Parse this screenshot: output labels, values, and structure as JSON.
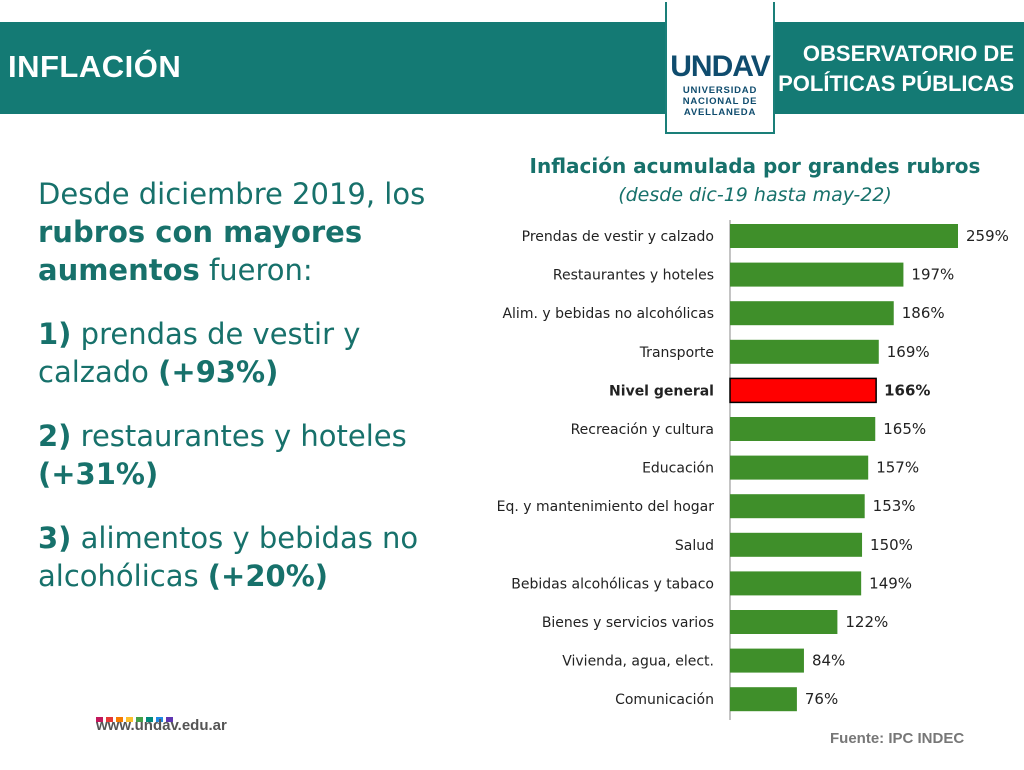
{
  "header": {
    "title": "INFLACIÓN",
    "right_line1": "OBSERVATORIO DE",
    "right_line2": "POLÍTICAS PÚBLICAS",
    "logo_mark": "UNDAV",
    "logo_line1": "UNIVERSIDAD",
    "logo_line2": "NACIONAL DE",
    "logo_line3": "AVELLANEDA"
  },
  "left_text": {
    "intro_1": "Desde diciembre 2019, los ",
    "intro_bold": "rubros con mayores aumentos",
    "intro_2": " fueron:",
    "item1_num": "1)",
    "item1_text": " prendas de vestir y calzado ",
    "item1_pct": "(+93%)",
    "item2_num": "2)",
    "item2_text": " restaurantes y hoteles ",
    "item2_pct": "(+31%)",
    "item3_num": "3)",
    "item3_text": " alimentos y bebidas no alcohólicas ",
    "item3_pct": "(+20%)"
  },
  "footer": {
    "url": "www.undav.edu.ar",
    "source": "Fuente: IPC INDEC",
    "dot_colors": [
      "#c2185b",
      "#e53935",
      "#f57c00",
      "#fbc02d",
      "#43a047",
      "#00897b",
      "#1e88e5",
      "#5e35b1"
    ]
  },
  "chart_data": {
    "type": "bar",
    "orientation": "horizontal",
    "title": "Inflación acumulada por grandes rubros",
    "subtitle": "(desde dic-19 hasta may-22)",
    "categories": [
      "Prendas de vestir y calzado",
      "Restaurantes y hoteles",
      "Alim. y bebidas no alcohólicas",
      "Transporte",
      "Nivel general",
      "Recreación y cultura",
      "Educación",
      "Eq. y mantenimiento del hogar",
      "Salud",
      "Bebidas alcohólicas y tabaco",
      "Bienes y servicios varios",
      "Vivienda, agua, elect.",
      "Comunicación"
    ],
    "values": [
      259,
      197,
      186,
      169,
      166,
      165,
      157,
      153,
      150,
      149,
      122,
      84,
      76
    ],
    "labels": [
      "259%",
      "197%",
      "186%",
      "169%",
      "166%",
      "165%",
      "157%",
      "153%",
      "150%",
      "149%",
      "122%",
      "84%",
      "76%"
    ],
    "highlight": "Nivel general",
    "colors": {
      "bar": "#3f8f2a",
      "highlight": "#ff0000"
    },
    "xlim": [
      0,
      259
    ],
    "grid": false
  }
}
